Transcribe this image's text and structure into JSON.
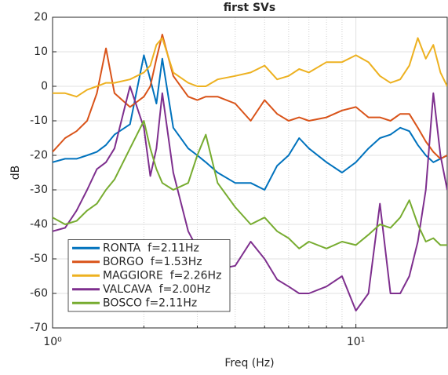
{
  "chart_data": {
    "type": "line",
    "title": "first SVs",
    "xlabel": "Freq (Hz)",
    "ylabel": "dB",
    "xscale": "log",
    "grid": true,
    "legend": "lower left",
    "xlim": [
      1,
      20
    ],
    "xticks": [
      {
        "value": 1,
        "label": "10⁰"
      },
      {
        "value": 10,
        "label": "10¹"
      }
    ],
    "xminorticks": [
      2,
      3,
      4,
      5,
      6,
      7,
      8,
      9,
      20
    ],
    "ylim": [
      -70,
      20
    ],
    "yticks": [
      -70,
      -60,
      -50,
      -40,
      -30,
      -20,
      -10,
      0,
      10,
      20
    ],
    "x": [
      1,
      1.1,
      1.2,
      1.3,
      1.4,
      1.5,
      1.6,
      1.8,
      2.0,
      2.1,
      2.2,
      2.3,
      2.5,
      2.8,
      3.0,
      3.2,
      3.5,
      4,
      4.5,
      5,
      5.5,
      6,
      6.5,
      7,
      8,
      9,
      10,
      11,
      12,
      13,
      14,
      15,
      16,
      17,
      18,
      19,
      20
    ],
    "series": [
      {
        "name": "RONTA  f=2.11Hz",
        "color": "#0072BD",
        "values": [
          -22,
          -21,
          -21,
          -20,
          -19,
          -17,
          -14,
          -11,
          9,
          2,
          -5,
          8,
          -12,
          -18,
          -20,
          -22,
          -25,
          -28,
          -28,
          -30,
          -23,
          -20,
          -15,
          -18,
          -22,
          -25,
          -22,
          -18,
          -15,
          -14,
          -12,
          -13,
          -17,
          -20,
          -22,
          -21,
          -20
        ]
      },
      {
        "name": "BORGO  f=1.53Hz",
        "color": "#D95319",
        "values": [
          -19,
          -15,
          -13,
          -10,
          -2,
          11,
          -2,
          -6,
          -3,
          0,
          8,
          15,
          3,
          -3,
          -4,
          -3,
          -3,
          -5,
          -10,
          -4,
          -8,
          -10,
          -9,
          -10,
          -9,
          -7,
          -6,
          -9,
          -9,
          -10,
          -8,
          -8,
          -12,
          -16,
          -19,
          -21,
          -20
        ]
      },
      {
        "name": "MAGGIORE  f=2.26Hz",
        "color": "#EDB120",
        "values": [
          -2,
          -2,
          -3,
          -1,
          0,
          1,
          1,
          2,
          4,
          6,
          12,
          14,
          4,
          1,
          0,
          0,
          2,
          3,
          4,
          6,
          2,
          3,
          5,
          4,
          7,
          7,
          9,
          7,
          3,
          1,
          2,
          6,
          14,
          8,
          12,
          4,
          0
        ]
      },
      {
        "name": "VALCAVA  f=2.00Hz",
        "color": "#7E2F8E",
        "values": [
          -42,
          -41,
          -36,
          -30,
          -24,
          -22,
          -18,
          0,
          -12,
          -26,
          -18,
          -2,
          -25,
          -42,
          -47,
          -50,
          -53,
          -52,
          -45,
          -50,
          -56,
          -58,
          -60,
          -60,
          -58,
          -55,
          -65,
          -60,
          -34,
          -60,
          -60,
          -55,
          -45,
          -30,
          -2,
          -20,
          -30
        ]
      },
      {
        "name": "BOSCO f=2.11Hz",
        "color": "#77AC30",
        "values": [
          -38,
          -40,
          -39,
          -36,
          -34,
          -30,
          -27,
          -18,
          -10,
          -18,
          -24,
          -28,
          -30,
          -28,
          -20,
          -14,
          -28,
          -35,
          -40,
          -38,
          -42,
          -44,
          -47,
          -45,
          -47,
          -45,
          -46,
          -43,
          -40,
          -41,
          -38,
          -33,
          -40,
          -45,
          -44,
          -46,
          -46
        ]
      }
    ]
  }
}
